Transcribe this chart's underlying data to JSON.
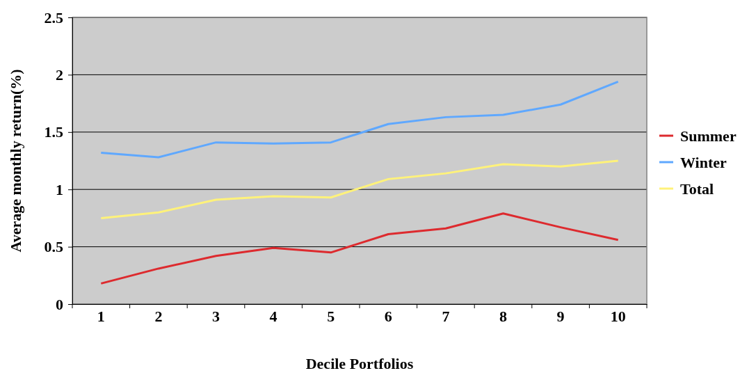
{
  "chart_data": {
    "type": "line",
    "xlabel": "Decile Portfolios",
    "ylabel": "Average monthly return(%)",
    "categories": [
      "1",
      "2",
      "3",
      "4",
      "5",
      "6",
      "7",
      "8",
      "9",
      "10"
    ],
    "series": [
      {
        "name": "Summer",
        "color": "#dd2a2e",
        "values": [
          0.18,
          0.31,
          0.42,
          0.49,
          0.45,
          0.61,
          0.66,
          0.79,
          0.67,
          0.56
        ]
      },
      {
        "name": "Winter",
        "color": "#5fa8ff",
        "values": [
          1.32,
          1.28,
          1.41,
          1.4,
          1.41,
          1.57,
          1.63,
          1.65,
          1.74,
          1.94
        ]
      },
      {
        "name": "Total",
        "color": "#fff27a",
        "values": [
          0.75,
          0.8,
          0.91,
          0.94,
          0.93,
          1.09,
          1.14,
          1.22,
          1.2,
          1.25
        ]
      }
    ],
    "ylim": [
      0,
      2.5
    ],
    "yticks": [
      0,
      0.5,
      1,
      1.5,
      2,
      2.5
    ],
    "grid": "y",
    "legend": "right",
    "marker": "none",
    "line_style": "solid"
  }
}
